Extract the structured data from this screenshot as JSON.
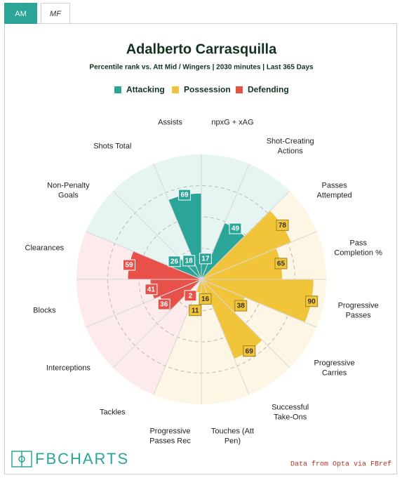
{
  "tabs": [
    "AM",
    "MF"
  ],
  "logo": "FBCHARTS",
  "source": "Data from Opta via FBref",
  "chart_data": {
    "type": "polar_bar",
    "title": "Adalberto Carrasquilla",
    "subtitle": "Percentile rank vs. Att Mid / Wingers | 2030 minutes | Last 365 Days",
    "categories": [
      "npxG + xAG",
      "Shot-Creating Actions",
      "Passes Attempted",
      "Pass Completion %",
      "Progressive Passes",
      "Progressive Carries",
      "Successful Take-Ons",
      "Touches (Att Pen)",
      "Progressive Passes Rec",
      "Tackles",
      "Interceptions",
      "Blocks",
      "Clearances",
      "Non-Penalty Goals",
      "Shots Total",
      "Assists"
    ],
    "series": [
      {
        "name": "Attacking",
        "color": "#2ba597",
        "background": "#e7f5f2",
        "label_text_color": "#ffffff",
        "values": [
          17,
          49,
          null,
          null,
          null,
          null,
          null,
          null,
          null,
          null,
          null,
          null,
          null,
          26,
          18,
          69
        ]
      },
      {
        "name": "Possession",
        "color": "#f2c43a",
        "background": "#fdf6e4",
        "label_text_color": "#333333",
        "values": [
          null,
          null,
          78,
          65,
          90,
          38,
          69,
          16,
          11,
          null,
          null,
          null,
          null,
          null,
          null,
          null
        ]
      },
      {
        "name": "Defending",
        "color": "#e8504a",
        "background": "#fcebea",
        "label_text_color": "#ffffff",
        "values": [
          null,
          null,
          null,
          null,
          null,
          null,
          null,
          null,
          null,
          2,
          36,
          41,
          59,
          null,
          null,
          null
        ]
      }
    ],
    "rlim": [
      0,
      100
    ],
    "rticks": [
      25,
      50,
      75
    ],
    "grid": true
  }
}
